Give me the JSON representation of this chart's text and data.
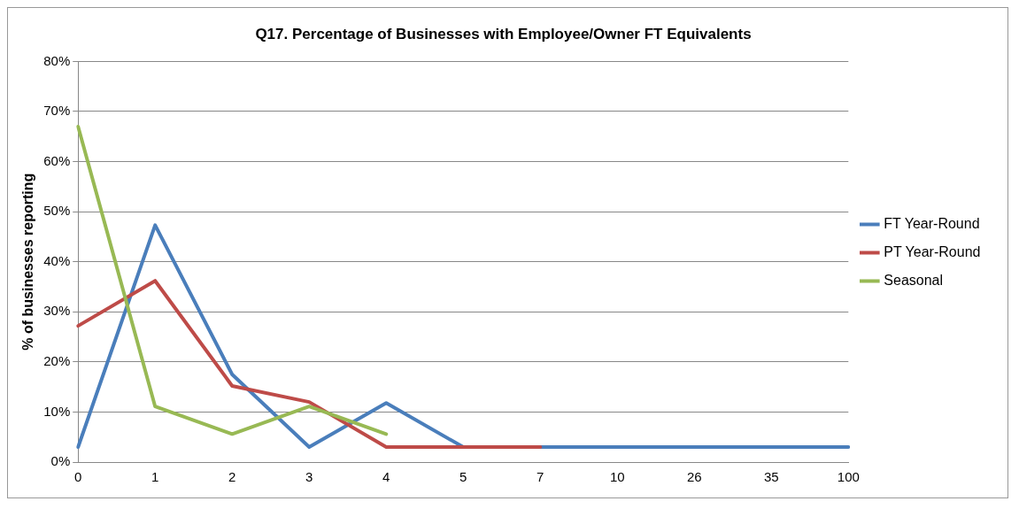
{
  "chart_data": {
    "type": "line",
    "title": "Q17. Percentage of Businesses with Employee/Owner FT Equivalents",
    "ylabel": "% of businesses reporting",
    "categories": [
      "0",
      "1",
      "2",
      "3",
      "4",
      "5",
      "7",
      "10",
      "26",
      "35",
      "100"
    ],
    "series": [
      {
        "name": "FT Year-Round",
        "color": "#4a7ebb",
        "values": [
          3,
          47.3,
          17.5,
          3,
          11.8,
          3,
          3,
          3,
          3,
          3,
          3
        ]
      },
      {
        "name": "PT Year-Round",
        "color": "#be4b48",
        "values": [
          27.2,
          36.2,
          15.2,
          12,
          3,
          3,
          3,
          null,
          null,
          null,
          null
        ]
      },
      {
        "name": "Seasonal",
        "color": "#98b954",
        "values": [
          67,
          11.1,
          5.6,
          11.1,
          5.6,
          null,
          null,
          null,
          null,
          null,
          null
        ]
      }
    ],
    "ylim": [
      0,
      80
    ],
    "yticks": [
      {
        "value": 0,
        "label": "0%"
      },
      {
        "value": 10,
        "label": "10%"
      },
      {
        "value": 20,
        "label": "20%"
      },
      {
        "value": 30,
        "label": "30%"
      },
      {
        "value": 40,
        "label": "40%"
      },
      {
        "value": 50,
        "label": "50%"
      },
      {
        "value": 60,
        "label": "60%"
      },
      {
        "value": 70,
        "label": "70%"
      },
      {
        "value": 80,
        "label": "80%"
      }
    ],
    "grid": "y",
    "legend": "right",
    "marker": "none",
    "line_style": "solid"
  }
}
